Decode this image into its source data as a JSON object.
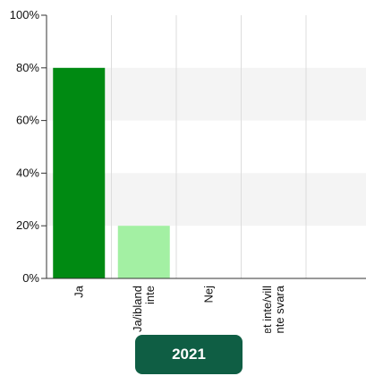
{
  "chart_data": {
    "type": "bar",
    "categories": [
      [
        "Ja"
      ],
      [
        "Ja/ibland",
        "inte"
      ],
      [
        "Nej"
      ],
      [
        "Vet inte/vill",
        "inte svara"
      ]
    ],
    "values": [
      80,
      20,
      0,
      0
    ],
    "colors": [
      "#008a12",
      "#a3f0a3",
      "#008a12",
      "#008a12"
    ],
    "y_ticks": [
      "0%",
      "20%",
      "40%",
      "60%",
      "80%",
      "100%"
    ],
    "ylim": [
      0,
      100
    ],
    "grid": true
  },
  "year_button": {
    "label": "2021"
  }
}
